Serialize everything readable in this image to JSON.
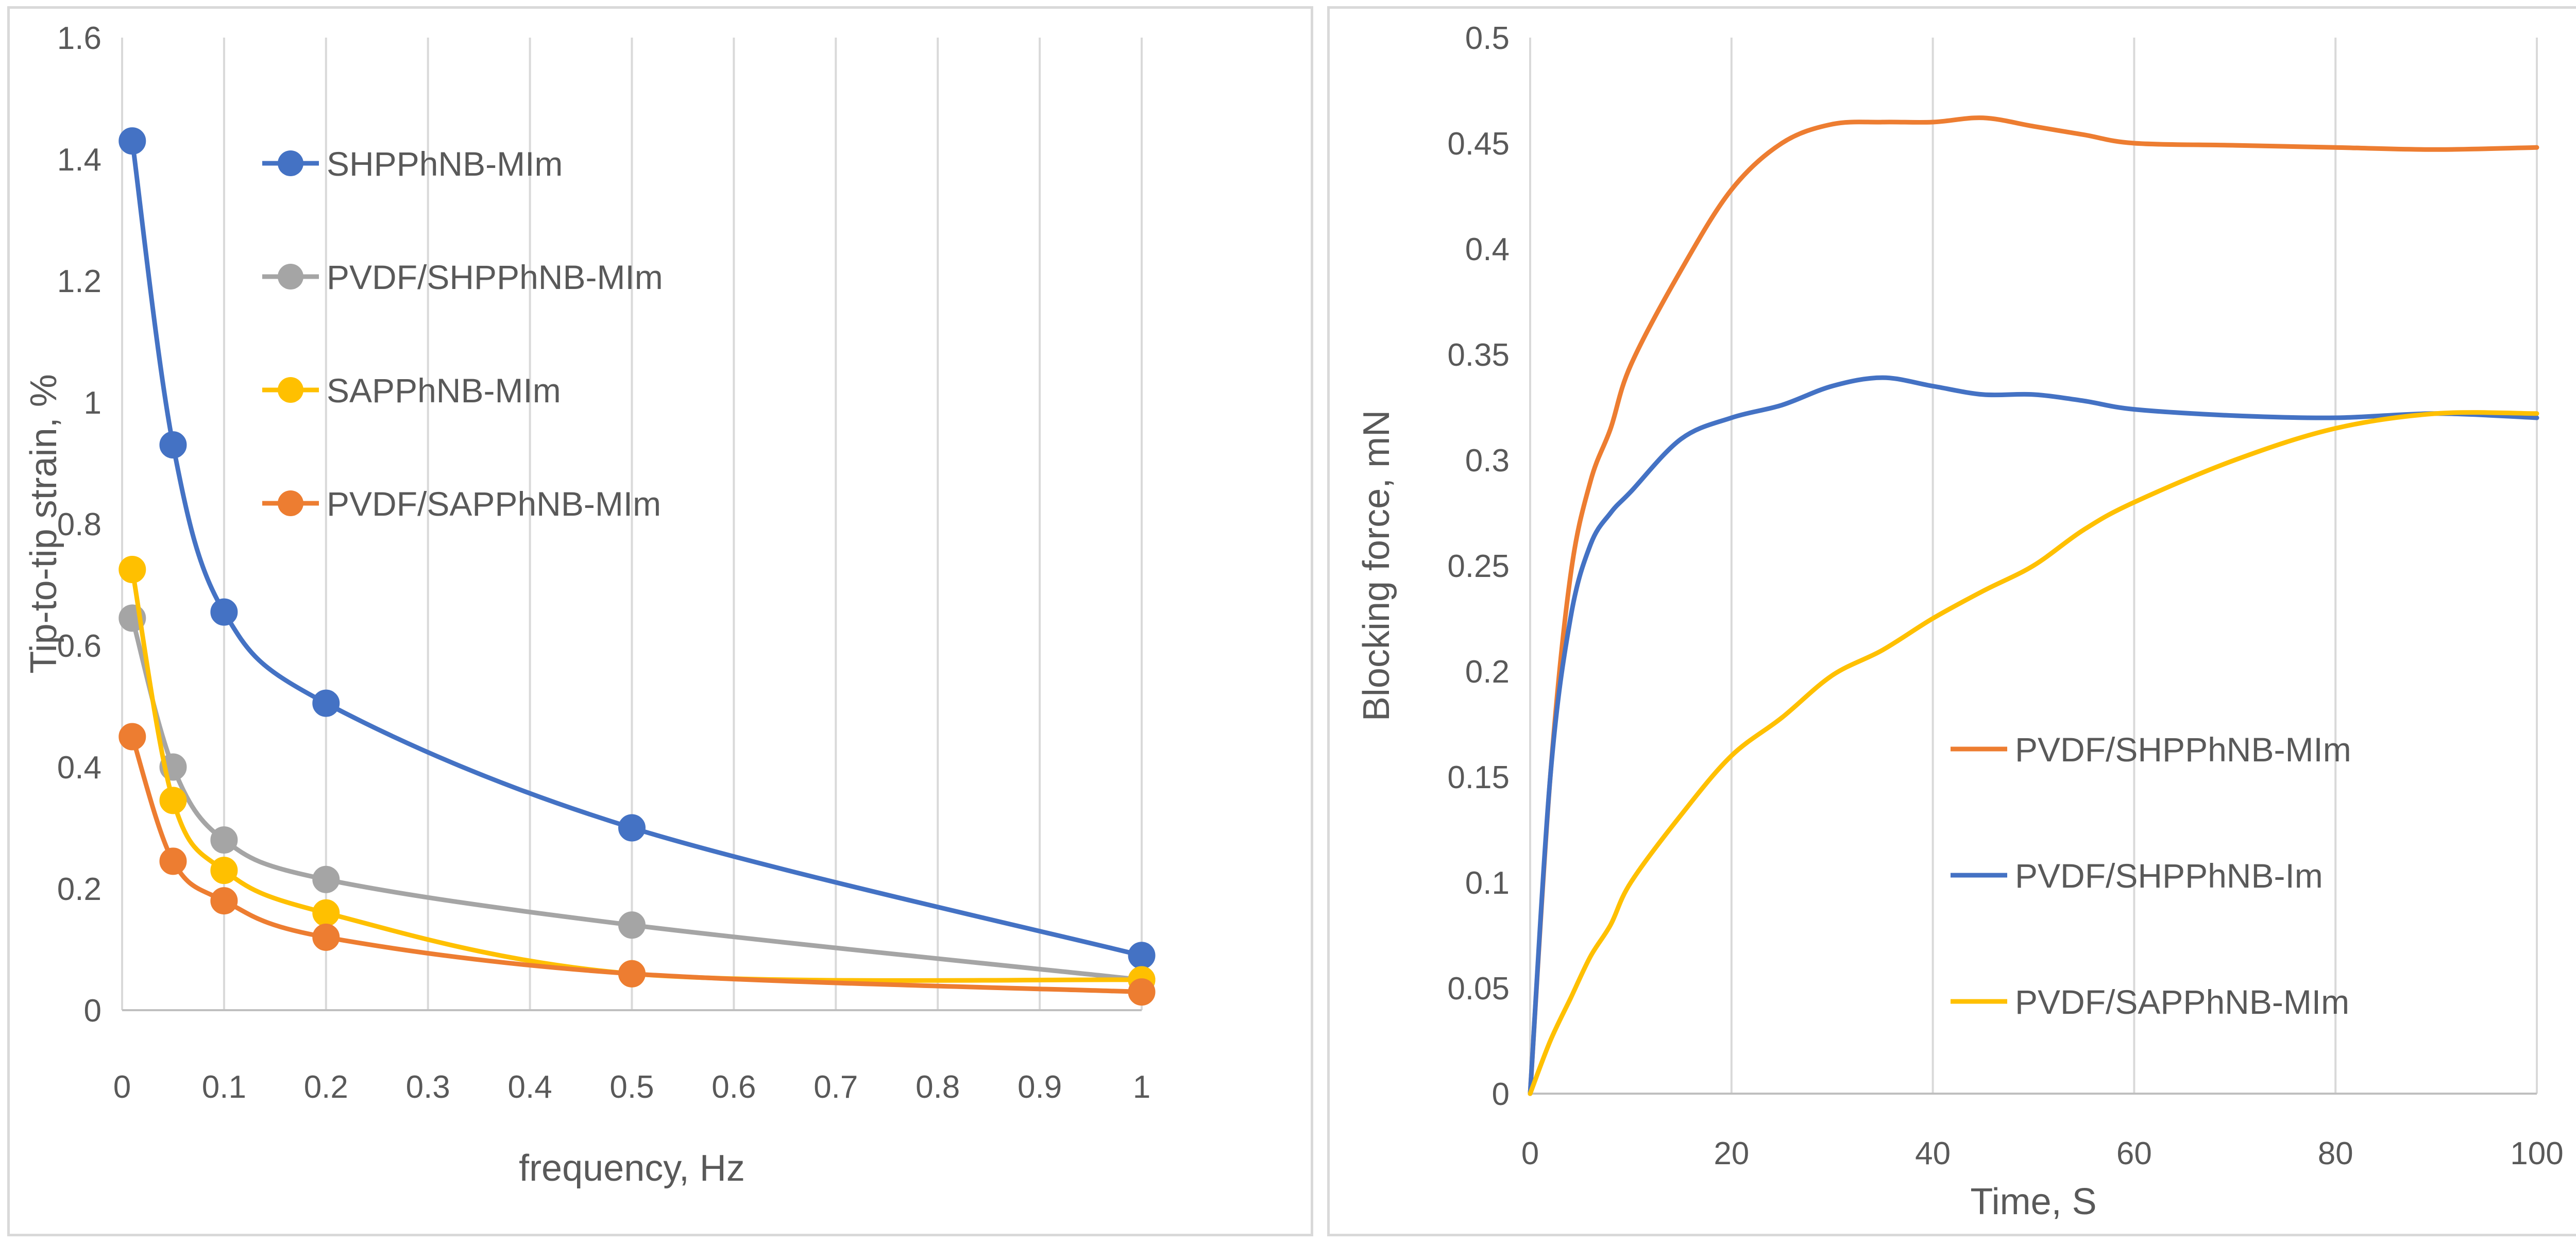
{
  "chart_data": [
    {
      "type": "line",
      "title": "",
      "xlabel": "frequency, Hz",
      "ylabel": "Tip-to-tip strain, %",
      "xlim": [
        0,
        1
      ],
      "ylim": [
        0,
        1.6
      ],
      "x_ticks": [
        "0",
        "0.1",
        "0.2",
        "0.3",
        "0.4",
        "0.5",
        "0.6",
        "0.7",
        "0.8",
        "0.9",
        "1"
      ],
      "y_ticks": [
        "0",
        "0.2",
        "0.4",
        "0.6",
        "0.8",
        "1",
        "1.2",
        "1.4",
        "1.6"
      ],
      "grid": "vertical",
      "legend_position": "top-right inside",
      "markers": true,
      "series": [
        {
          "name": "SHPPhNB-MIm",
          "color": "#4472C4",
          "x": [
            0.01,
            0.05,
            0.1,
            0.2,
            0.5,
            1.0
          ],
          "values": [
            1.43,
            0.93,
            0.655,
            0.505,
            0.3,
            0.09
          ]
        },
        {
          "name": "PVDF/SHPPhNB-MIm",
          "color": "#A5A5A5",
          "x": [
            0.01,
            0.05,
            0.1,
            0.2,
            0.5,
            1.0
          ],
          "values": [
            0.645,
            0.4,
            0.28,
            0.215,
            0.14,
            0.05
          ]
        },
        {
          "name": "SAPPhNB-MIm",
          "color": "#FFC000",
          "x": [
            0.01,
            0.05,
            0.1,
            0.2,
            0.5,
            1.0
          ],
          "values": [
            0.725,
            0.345,
            0.23,
            0.16,
            0.06,
            0.05
          ]
        },
        {
          "name": "PVDF/SAPPhNB-MIm",
          "color": "#ED7D31",
          "x": [
            0.01,
            0.05,
            0.1,
            0.2,
            0.5,
            1.0
          ],
          "values": [
            0.45,
            0.245,
            0.18,
            0.12,
            0.06,
            0.03
          ]
        }
      ]
    },
    {
      "type": "line",
      "title": "",
      "xlabel": "Time, S",
      "ylabel": "Blocking force, mN",
      "xlim": [
        0,
        100
      ],
      "ylim": [
        0,
        0.5
      ],
      "x_ticks": [
        "0",
        "20",
        "40",
        "60",
        "80",
        "100"
      ],
      "y_ticks": [
        "0",
        "0.05",
        "0.1",
        "0.15",
        "0.2",
        "0.25",
        "0.3",
        "0.35",
        "0.4",
        "0.45",
        "0.5"
      ],
      "grid": "vertical",
      "legend_position": "bottom-right inside",
      "markers": false,
      "series": [
        {
          "name": "PVDF/SHPPhNB-MIm",
          "color": "#ED7D31",
          "x": [
            0,
            2,
            4,
            6,
            8,
            10,
            15,
            20,
            25,
            30,
            35,
            40,
            45,
            50,
            55,
            60,
            70,
            80,
            90,
            100
          ],
          "values": [
            0,
            0.15,
            0.245,
            0.29,
            0.315,
            0.345,
            0.39,
            0.428,
            0.45,
            0.459,
            0.46,
            0.46,
            0.462,
            0.458,
            0.454,
            0.45,
            0.449,
            0.448,
            0.447,
            0.448
          ]
        },
        {
          "name": "PVDF/SHPPhNB-Im",
          "color": "#4472C4",
          "x": [
            0,
            2,
            4,
            6,
            8,
            10,
            15,
            20,
            25,
            30,
            35,
            40,
            45,
            50,
            55,
            60,
            70,
            80,
            90,
            100
          ],
          "values": [
            0,
            0.15,
            0.225,
            0.26,
            0.275,
            0.285,
            0.31,
            0.32,
            0.326,
            0.335,
            0.339,
            0.335,
            0.331,
            0.331,
            0.328,
            0.324,
            0.321,
            0.32,
            0.322,
            0.32
          ]
        },
        {
          "name": "PVDF/SAPPhNB-MIm",
          "color": "#FFC000",
          "x": [
            0,
            2,
            4,
            6,
            8,
            10,
            15,
            20,
            25,
            30,
            35,
            40,
            45,
            50,
            55,
            60,
            70,
            80,
            90,
            100
          ],
          "values": [
            0,
            0.025,
            0.045,
            0.065,
            0.08,
            0.1,
            0.132,
            0.16,
            0.178,
            0.198,
            0.21,
            0.225,
            0.238,
            0.25,
            0.267,
            0.28,
            0.3,
            0.315,
            0.322,
            0.322
          ]
        }
      ]
    }
  ]
}
